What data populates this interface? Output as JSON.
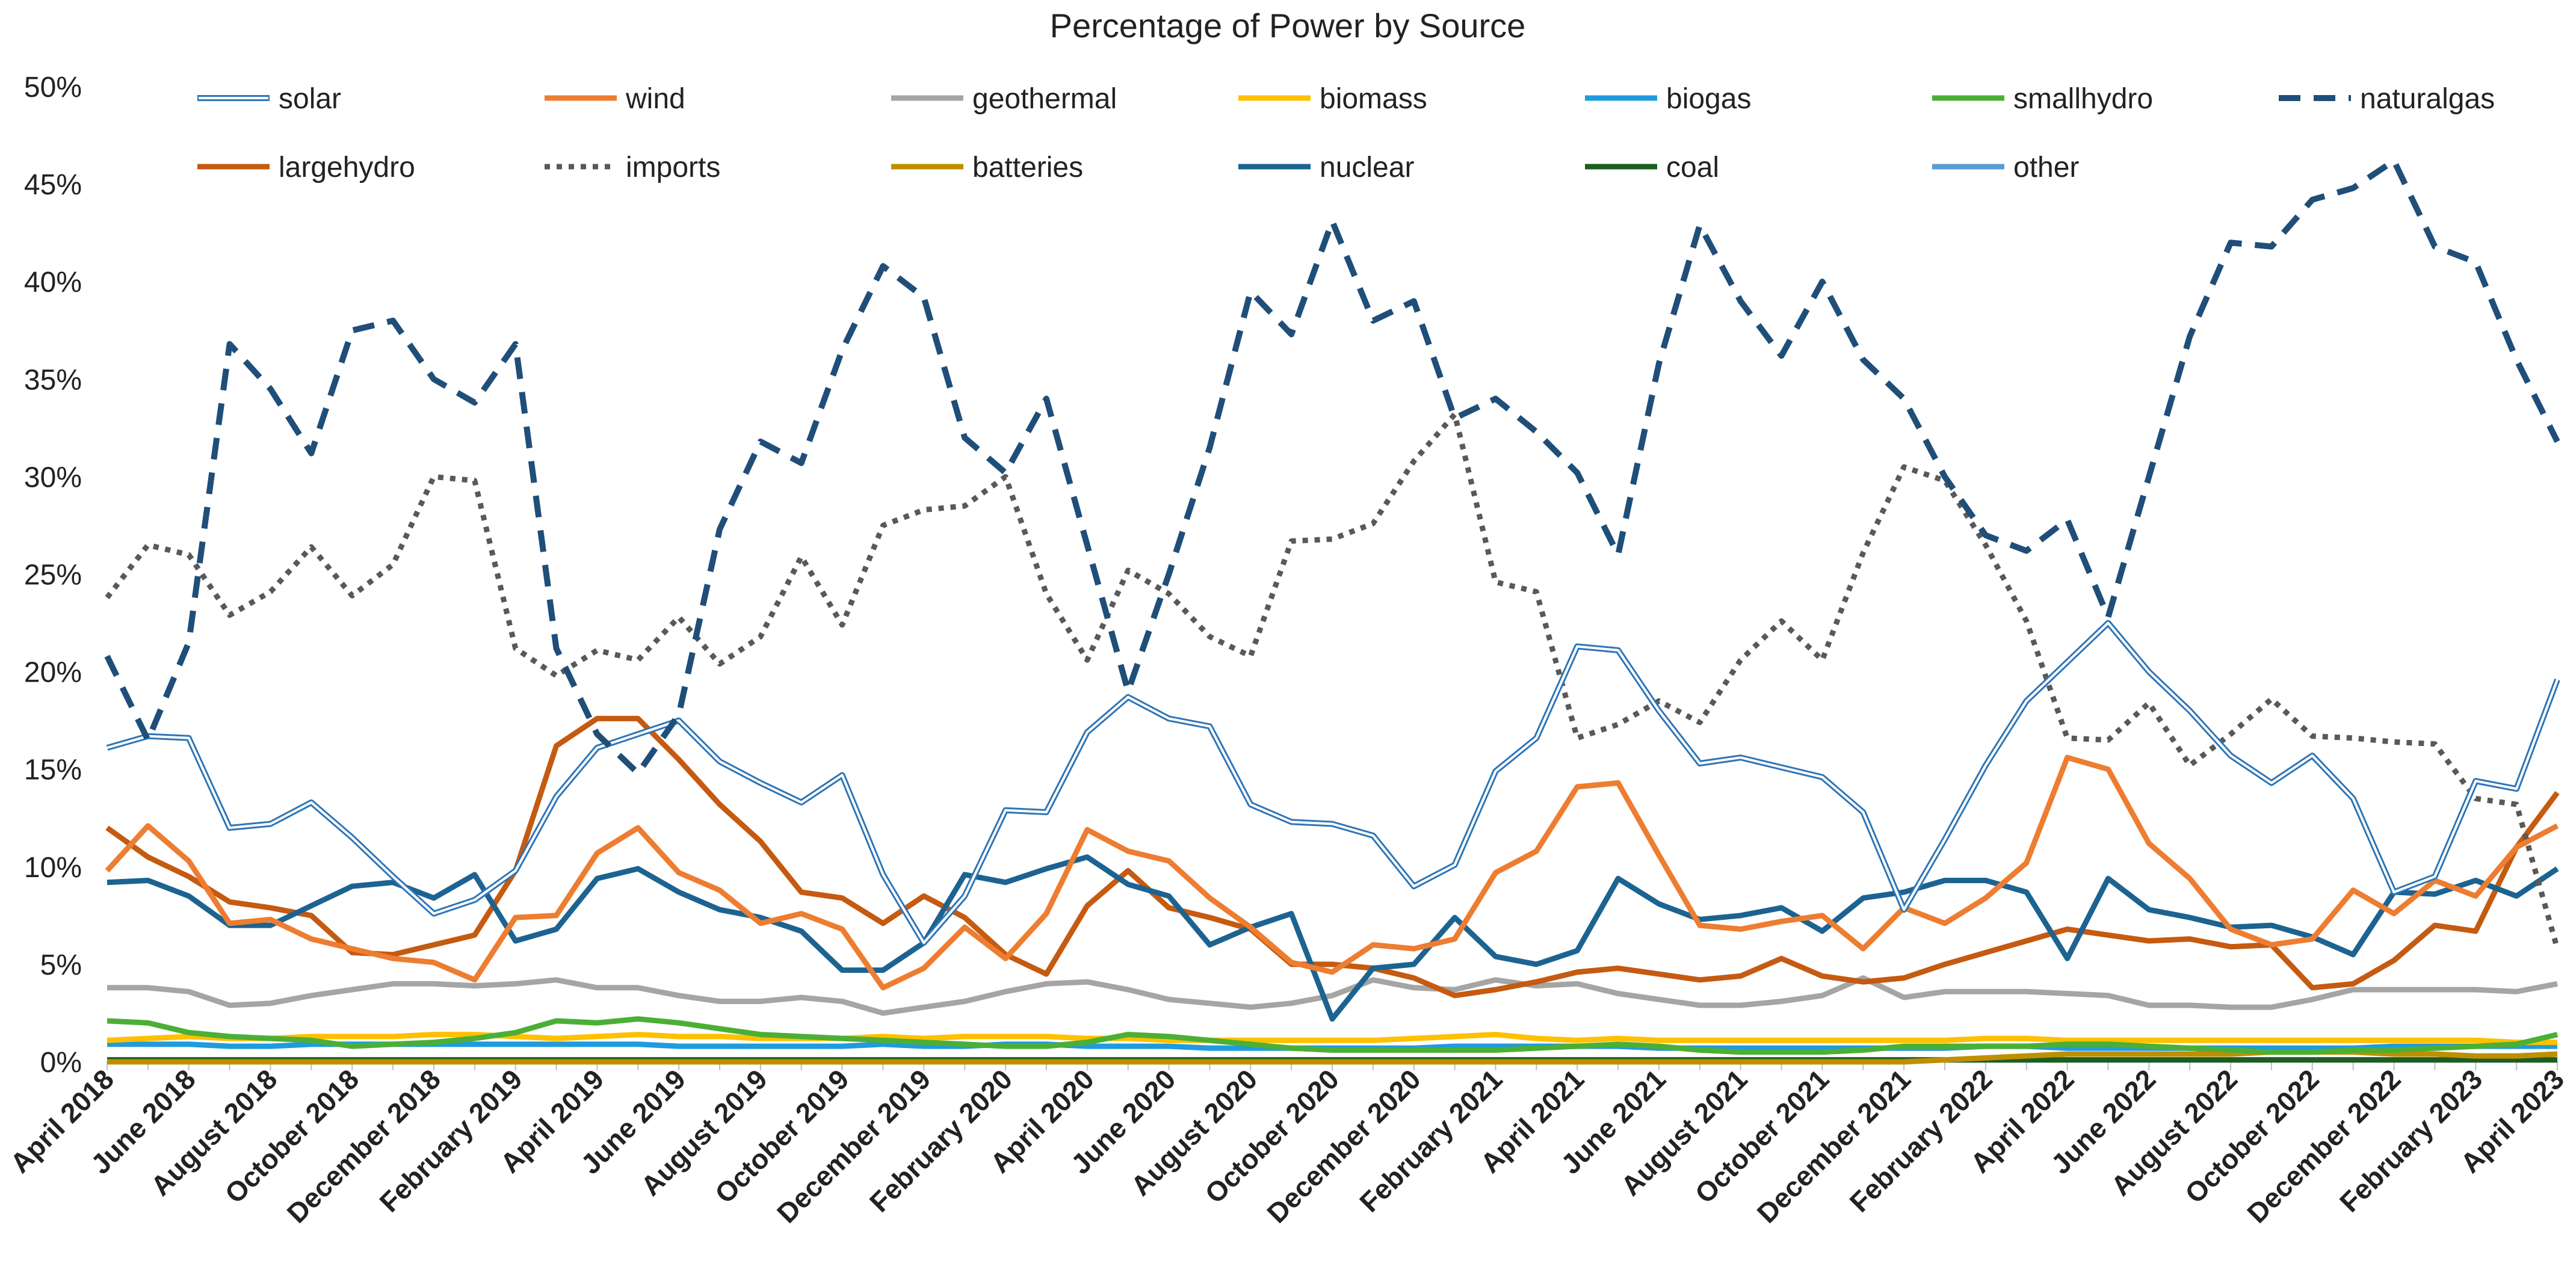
{
  "chart_data": {
    "type": "line",
    "title": "Percentage of Power by Source",
    "xlabel": "",
    "ylabel": "",
    "ylim": [
      0,
      50
    ],
    "yticks": [
      0,
      5,
      10,
      15,
      20,
      25,
      30,
      35,
      40,
      45,
      50
    ],
    "ytick_labels": [
      "0%",
      "5%",
      "10%",
      "15%",
      "20%",
      "25%",
      "30%",
      "35%",
      "40%",
      "45%",
      "50%"
    ],
    "x": [
      "April 2018",
      "May 2018",
      "June 2018",
      "July 2018",
      "August 2018",
      "September 2018",
      "October 2018",
      "November 2018",
      "December 2018",
      "January 2019",
      "February 2019",
      "March 2019",
      "April 2019",
      "May 2019",
      "June 2019",
      "July 2019",
      "August 2019",
      "September 2019",
      "October 2019",
      "November 2019",
      "December 2019",
      "January 2020",
      "February 2020",
      "March 2020",
      "April 2020",
      "May 2020",
      "June 2020",
      "July 2020",
      "August 2020",
      "September 2020",
      "October 2020",
      "November 2020",
      "December 2020",
      "January 2021",
      "February 2021",
      "March 2021",
      "April 2021",
      "May 2021",
      "June 2021",
      "July 2021",
      "August 2021",
      "September 2021",
      "October 2021",
      "November 2021",
      "December 2021",
      "January 2022",
      "February 2022",
      "March 2022",
      "April 2022",
      "May 2022",
      "June 2022",
      "July 2022",
      "August 2022",
      "September 2022",
      "October 2022",
      "November 2022",
      "December 2022",
      "January 2023",
      "February 2023",
      "March 2023",
      "April 2023"
    ],
    "xtick_labels": [
      "April 2018",
      "June 2018",
      "August 2018",
      "October 2018",
      "December 2018",
      "February 2019",
      "April 2019",
      "June 2019",
      "August 2019",
      "October 2019",
      "December 2019",
      "February 2020",
      "April 2020",
      "June 2020",
      "August 2020",
      "October 2020",
      "December 2020",
      "February 2021",
      "April 2021",
      "June 2021",
      "August 2021",
      "October 2021",
      "December 2021",
      "February 2022",
      "April 2022",
      "June 2022",
      "August 2022",
      "October 2022",
      "December 2022",
      "February 2023",
      "April 2023"
    ],
    "grid": false,
    "legend_position": "top",
    "series": [
      {
        "name": "solar",
        "color": "#2e75b6",
        "style": "double",
        "values": [
          16.1,
          16.7,
          16.6,
          12.0,
          12.2,
          13.3,
          11.5,
          9.5,
          7.6,
          8.3,
          9.8,
          13.6,
          16.1,
          16.8,
          17.5,
          15.4,
          14.3,
          13.3,
          14.7,
          9.6,
          6.1,
          8.5,
          12.9,
          12.8,
          16.9,
          18.7,
          17.6,
          17.2,
          13.2,
          12.3,
          12.2,
          11.6,
          9.0,
          10.1,
          14.9,
          16.6,
          21.3,
          21.1,
          18.0,
          15.3,
          15.6,
          15.1,
          14.6,
          12.8,
          7.8,
          11.4,
          15.2,
          18.5,
          20.5,
          22.5,
          20.0,
          18.0,
          15.7,
          14.3,
          15.7,
          13.5,
          8.7,
          9.5,
          14.4,
          14.0,
          19.6
        ]
      },
      {
        "name": "wind",
        "color": "#ed7d31",
        "style": "solid",
        "values": [
          9.8,
          12.1,
          10.3,
          7.1,
          7.3,
          6.3,
          5.8,
          5.3,
          5.1,
          4.2,
          7.4,
          7.5,
          10.7,
          12.0,
          9.7,
          8.8,
          7.1,
          7.6,
          6.8,
          3.8,
          4.8,
          6.9,
          5.3,
          7.6,
          11.9,
          10.8,
          10.3,
          8.4,
          6.9,
          5.1,
          4.6,
          6.0,
          5.8,
          6.3,
          9.7,
          10.8,
          14.1,
          14.3,
          10.6,
          7.0,
          6.8,
          7.2,
          7.5,
          5.8,
          7.9,
          7.1,
          8.4,
          10.2,
          15.6,
          15.0,
          11.2,
          9.4,
          6.8,
          6.0,
          6.3,
          8.8,
          7.6,
          9.3,
          8.5,
          11.0,
          12.1
        ]
      },
      {
        "name": "geothermal",
        "color": "#a5a5a5",
        "style": "solid",
        "values": [
          3.8,
          3.8,
          3.6,
          2.9,
          3.0,
          3.4,
          3.7,
          4.0,
          4.0,
          3.9,
          4.0,
          4.2,
          3.8,
          3.8,
          3.4,
          3.1,
          3.1,
          3.3,
          3.1,
          2.5,
          2.8,
          3.1,
          3.6,
          4.0,
          4.1,
          3.7,
          3.2,
          3.0,
          2.8,
          3.0,
          3.4,
          4.2,
          3.8,
          3.7,
          4.2,
          3.9,
          4.0,
          3.5,
          3.2,
          2.9,
          2.9,
          3.1,
          3.4,
          4.3,
          3.3,
          3.6,
          3.6,
          3.6,
          3.5,
          3.4,
          2.9,
          2.9,
          2.8,
          2.8,
          3.2,
          3.7,
          3.7,
          3.7,
          3.7,
          3.6,
          4.0
        ]
      },
      {
        "name": "biomass",
        "color": "#ffc000",
        "style": "solid",
        "values": [
          1.1,
          1.2,
          1.3,
          1.2,
          1.2,
          1.3,
          1.3,
          1.3,
          1.4,
          1.4,
          1.3,
          1.2,
          1.3,
          1.4,
          1.3,
          1.3,
          1.2,
          1.2,
          1.2,
          1.3,
          1.2,
          1.3,
          1.3,
          1.3,
          1.2,
          1.2,
          1.1,
          1.1,
          1.1,
          1.1,
          1.1,
          1.1,
          1.2,
          1.3,
          1.4,
          1.2,
          1.1,
          1.2,
          1.1,
          1.1,
          1.1,
          1.1,
          1.1,
          1.1,
          1.1,
          1.1,
          1.2,
          1.2,
          1.1,
          1.1,
          1.1,
          1.1,
          1.1,
          1.1,
          1.1,
          1.1,
          1.1,
          1.1,
          1.1,
          1.0,
          1.0
        ]
      },
      {
        "name": "biogas",
        "color": "#1f9bde",
        "style": "solid",
        "values": [
          0.9,
          0.9,
          0.9,
          0.8,
          0.8,
          0.9,
          0.9,
          0.9,
          0.9,
          0.9,
          0.9,
          0.9,
          0.9,
          0.9,
          0.8,
          0.8,
          0.8,
          0.8,
          0.8,
          0.9,
          0.8,
          0.8,
          0.9,
          0.9,
          0.8,
          0.8,
          0.8,
          0.7,
          0.7,
          0.7,
          0.7,
          0.7,
          0.7,
          0.8,
          0.8,
          0.8,
          0.8,
          0.8,
          0.7,
          0.7,
          0.7,
          0.7,
          0.7,
          0.7,
          0.7,
          0.7,
          0.8,
          0.8,
          0.7,
          0.7,
          0.7,
          0.7,
          0.7,
          0.7,
          0.7,
          0.7,
          0.8,
          0.8,
          0.8,
          0.8,
          0.8
        ]
      },
      {
        "name": "smallhydro",
        "color": "#4caf35",
        "style": "solid",
        "values": [
          2.1,
          2.0,
          1.5,
          1.3,
          1.2,
          1.1,
          0.8,
          0.9,
          1.0,
          1.2,
          1.5,
          2.1,
          2.0,
          2.2,
          2.0,
          1.7,
          1.4,
          1.3,
          1.2,
          1.1,
          1.0,
          0.9,
          0.8,
          0.8,
          1.0,
          1.4,
          1.3,
          1.1,
          0.9,
          0.7,
          0.6,
          0.6,
          0.6,
          0.6,
          0.6,
          0.7,
          0.8,
          0.9,
          0.8,
          0.6,
          0.5,
          0.5,
          0.5,
          0.6,
          0.8,
          0.8,
          0.8,
          0.8,
          0.9,
          0.9,
          0.8,
          0.7,
          0.6,
          0.5,
          0.5,
          0.6,
          0.6,
          0.7,
          0.8,
          0.9,
          1.4
        ]
      },
      {
        "name": "naturalgas",
        "color": "#1f4e79",
        "style": "dashed",
        "values": [
          20.8,
          16.5,
          21.5,
          36.8,
          34.5,
          31.2,
          37.5,
          38.0,
          35.0,
          33.8,
          36.8,
          21.2,
          16.8,
          14.8,
          17.8,
          27.3,
          31.8,
          30.7,
          36.5,
          40.8,
          39.2,
          32.0,
          30.2,
          34.0,
          26.5,
          19.0,
          25.0,
          31.5,
          39.5,
          37.3,
          43.1,
          38.0,
          39.0,
          33.0,
          34.0,
          32.3,
          30.2,
          26.0,
          35.8,
          42.9,
          39.0,
          36.2,
          40.0,
          36.0,
          34.0,
          30.0,
          27.0,
          26.2,
          27.8,
          22.8,
          30.0,
          37.2,
          42.0,
          41.8,
          44.2,
          44.8,
          46.2,
          41.8,
          41.0,
          36.0,
          31.8
        ]
      },
      {
        "name": "largehydro",
        "color": "#c55a11",
        "style": "solid",
        "values": [
          12.0,
          10.5,
          9.5,
          8.2,
          7.9,
          7.5,
          5.6,
          5.5,
          6.0,
          6.5,
          9.8,
          16.2,
          17.6,
          17.6,
          15.5,
          13.2,
          11.3,
          8.7,
          8.4,
          7.1,
          8.5,
          7.4,
          5.5,
          4.5,
          8.0,
          9.8,
          7.9,
          7.4,
          6.8,
          5.0,
          5.0,
          4.8,
          4.3,
          3.4,
          3.7,
          4.1,
          4.6,
          4.8,
          4.5,
          4.2,
          4.4,
          5.3,
          4.4,
          4.1,
          4.3,
          5.0,
          5.6,
          6.2,
          6.8,
          6.5,
          6.2,
          6.3,
          5.9,
          6.0,
          3.8,
          4.0,
          5.2,
          7.0,
          6.7,
          11.0,
          13.8
        ]
      },
      {
        "name": "imports",
        "color": "#595959",
        "style": "dotted",
        "values": [
          23.8,
          26.5,
          26.0,
          22.9,
          24.1,
          26.4,
          23.9,
          25.5,
          30.0,
          29.8,
          21.2,
          19.8,
          21.1,
          20.6,
          22.8,
          20.4,
          21.8,
          25.9,
          22.4,
          27.5,
          28.3,
          28.5,
          30.0,
          24.0,
          20.6,
          25.2,
          24.0,
          21.8,
          20.8,
          26.7,
          26.8,
          27.6,
          30.8,
          33.2,
          24.6,
          24.1,
          16.6,
          17.3,
          18.5,
          17.4,
          20.6,
          22.6,
          20.6,
          26.1,
          30.5,
          29.8,
          26.5,
          22.6,
          16.6,
          16.5,
          18.4,
          15.2,
          16.8,
          18.6,
          16.7,
          16.6,
          16.4,
          16.3,
          13.5,
          13.2,
          5.8
        ]
      },
      {
        "name": "batteries",
        "color": "#bf8f00",
        "style": "solid",
        "values": [
          0,
          0,
          0,
          0,
          0,
          0,
          0,
          0,
          0,
          0,
          0,
          0,
          0,
          0,
          0,
          0,
          0,
          0,
          0,
          0,
          0,
          0,
          0,
          0,
          0,
          0,
          0,
          0,
          0,
          0,
          0,
          0,
          0,
          0,
          0,
          0,
          0,
          0,
          0,
          0,
          0,
          0,
          0,
          0,
          0,
          0.1,
          0.2,
          0.3,
          0.4,
          0.4,
          0.4,
          0.4,
          0.4,
          0.5,
          0.5,
          0.5,
          0.4,
          0.4,
          0.3,
          0.3,
          0.4
        ]
      },
      {
        "name": "nuclear",
        "color": "#1c6391",
        "style": "solid",
        "values": [
          9.2,
          9.3,
          8.5,
          7.0,
          7.0,
          8.0,
          9.0,
          9.2,
          8.4,
          9.6,
          6.2,
          6.8,
          9.4,
          9.9,
          8.7,
          7.8,
          7.4,
          6.7,
          4.7,
          4.7,
          6.1,
          9.6,
          9.2,
          9.9,
          10.5,
          9.1,
          8.5,
          6.0,
          6.9,
          7.6,
          2.2,
          4.8,
          5.0,
          7.4,
          5.4,
          5.0,
          5.7,
          9.4,
          8.1,
          7.3,
          7.5,
          7.9,
          6.7,
          8.4,
          8.7,
          9.3,
          9.3,
          8.7,
          5.3,
          9.4,
          7.8,
          7.4,
          6.9,
          7.0,
          6.4,
          5.5,
          8.7,
          8.6,
          9.3,
          8.5,
          9.9
        ]
      },
      {
        "name": "coal",
        "color": "#1d5e20",
        "style": "solid",
        "values": [
          0.1,
          0.1,
          0.1,
          0.1,
          0.1,
          0.1,
          0.1,
          0.1,
          0.1,
          0.1,
          0.1,
          0.1,
          0.1,
          0.1,
          0.1,
          0.1,
          0.1,
          0.1,
          0.1,
          0.1,
          0.1,
          0.1,
          0.1,
          0.1,
          0.1,
          0.1,
          0.1,
          0.1,
          0.1,
          0.1,
          0.1,
          0.1,
          0.1,
          0.1,
          0.1,
          0.1,
          0.1,
          0.1,
          0.1,
          0.1,
          0.1,
          0.1,
          0.1,
          0.1,
          0.1,
          0.1,
          0.1,
          0.1,
          0.1,
          0.1,
          0.1,
          0.1,
          0.1,
          0.1,
          0.1,
          0.1,
          0.1,
          0.1,
          0.1,
          0.1,
          0.1
        ]
      },
      {
        "name": "other",
        "color": "#5b9bd5",
        "style": "solid",
        "values": [
          0.1,
          0.1,
          0.1,
          0.1,
          0.1,
          0.1,
          0.1,
          0.1,
          0.1,
          0.1,
          0.1,
          0.1,
          0.1,
          0.1,
          0.1,
          0.1,
          0.1,
          0.1,
          0.1,
          0.1,
          0.1,
          0.1,
          0.1,
          0.1,
          0.1,
          0.1,
          0.1,
          0.1,
          0.1,
          0.1,
          0.1,
          0.1,
          0.1,
          0.1,
          0.1,
          0.1,
          0.1,
          0.1,
          0.1,
          0.1,
          0.1,
          0.1,
          0.1,
          0.1,
          0.1,
          0.1,
          0.1,
          0.1,
          0.1,
          0.1,
          0.1,
          0.1,
          0.1,
          0.1,
          0.1,
          0.1,
          0.1,
          0.1,
          0.1,
          0.1,
          0.1
        ]
      }
    ]
  }
}
